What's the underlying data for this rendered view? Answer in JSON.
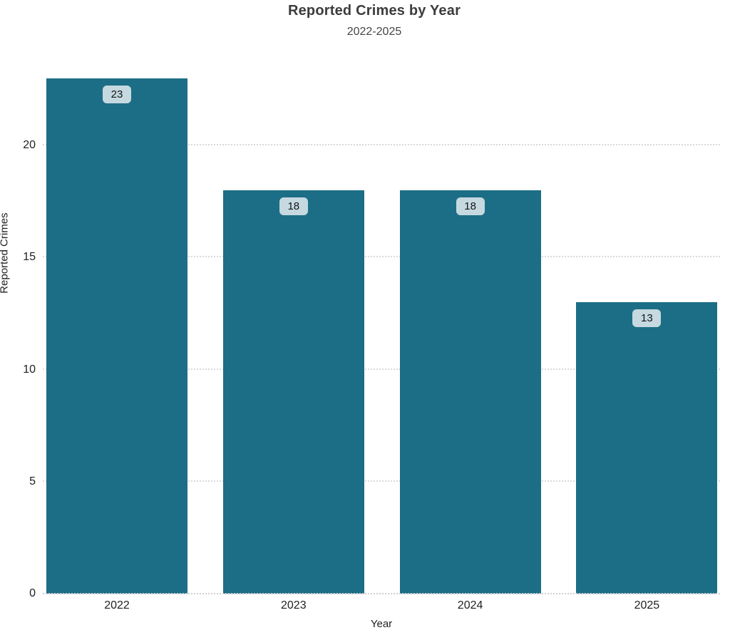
{
  "chart_data": {
    "type": "bar",
    "title": "Reported Crimes by Year",
    "subtitle": "2022-2025",
    "xlabel": "Year",
    "ylabel": "Reported Crimes",
    "categories": [
      "2022",
      "2023",
      "2024",
      "2025"
    ],
    "values": [
      23,
      18,
      18,
      13
    ],
    "series": [
      {
        "name": "Reported Crimes",
        "values": [
          23,
          18,
          18,
          13
        ]
      }
    ],
    "yticks": [
      0,
      5,
      10,
      15,
      20
    ],
    "ylim": [
      0,
      23.7
    ],
    "grid": "horizontal-dotted",
    "legend_position": "none",
    "bar_value_labels": [
      "23",
      "18",
      "18",
      "13"
    ],
    "colors": {
      "bar": "#1c6e86",
      "value_label_bg": "#c6d9e0",
      "value_label_text": "#141414",
      "gridline": "#d9d9d9",
      "title_text": "#3c3c3c",
      "tick_text": "#1f1f1f",
      "background": "#ffffff"
    }
  }
}
